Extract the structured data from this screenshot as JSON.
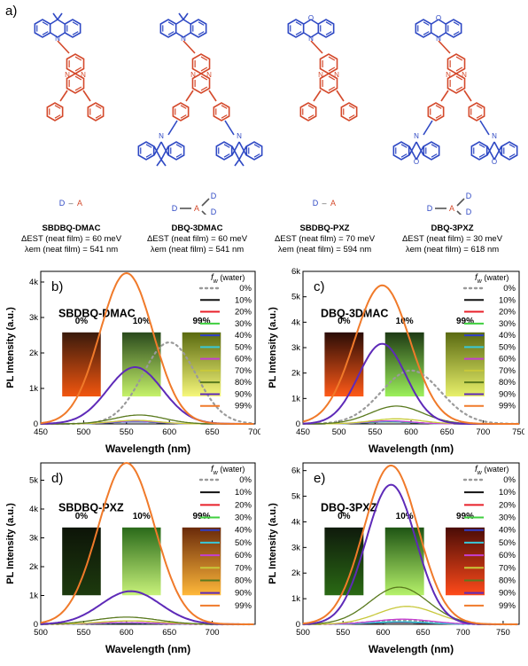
{
  "panel_a": {
    "label": "a)",
    "compounds": [
      {
        "name": "SBDBQ-DMAC",
        "dest": "ΔEST (neat film) = 60 meV",
        "lem": "λem (neat film) = 541 nm",
        "da": [
          "D",
          "A"
        ],
        "donor": "dmac",
        "double": false
      },
      {
        "name": "DBQ-3DMAC",
        "dest": "ΔEST (neat film) = 60 meV",
        "lem": "λem (neat film) = 541 nm",
        "da": [
          "D",
          "A",
          "D",
          "D"
        ],
        "donor": "dmac",
        "double": true
      },
      {
        "name": "SBDBQ-PXZ",
        "dest": "ΔEST (neat film) = 70 meV",
        "lem": "λem (neat film) = 594 nm",
        "da": [
          "D",
          "A"
        ],
        "donor": "pxz",
        "double": false
      },
      {
        "name": "DBQ-3PXZ",
        "dest": "ΔEST (neat film) = 30 meV",
        "lem": "λem (neat film) = 618 nm",
        "da": [
          "D",
          "A",
          "D",
          "D"
        ],
        "donor": "pxz",
        "double": true
      }
    ],
    "colors": {
      "donor": "#2f49c4",
      "acceptor": "#d4492b"
    }
  },
  "legend": {
    "title": "f",
    "title_sub": "w",
    "title_suffix": " (water)",
    "entries": [
      "0%",
      "10%",
      "20%",
      "30%",
      "40%",
      "50%",
      "60%",
      "70%",
      "80%",
      "90%",
      "99%"
    ],
    "colors": [
      "#9a9a9a",
      "#111111",
      "#e8202a",
      "#3fcf3f",
      "#2f3fc8",
      "#38c8d8",
      "#c43fd0",
      "#c8c83a",
      "#5a7a1e",
      "#5e2ab8",
      "#f07a2a"
    ]
  },
  "photo_labels": [
    "0%",
    "10%",
    "99%"
  ],
  "chart_data": [
    {
      "type": "line",
      "label": "b)",
      "name": "SBDBQ-DMAC",
      "xlabel": "Wavelength (nm)",
      "ylabel": "PL Intensity (a.u.)",
      "xlim": [
        450,
        700
      ],
      "ylim": [
        0,
        4300
      ],
      "xticks": [
        450,
        500,
        550,
        600,
        650,
        700
      ],
      "xtick_labels": [
        "450",
        "500",
        "550",
        "600",
        "650",
        "700"
      ],
      "yticks": [
        0,
        1000,
        2000,
        3000,
        4000
      ],
      "ytick_labels": [
        "0",
        "1k",
        "2k",
        "3k",
        "4k"
      ],
      "series": [
        {
          "name": "0%",
          "peak": 2300,
          "center": 600,
          "width": 34
        },
        {
          "name": "10%",
          "peak": 60,
          "center": 560,
          "width": 30
        },
        {
          "name": "20%",
          "peak": 60,
          "center": 560,
          "width": 30
        },
        {
          "name": "30%",
          "peak": 60,
          "center": 560,
          "width": 30
        },
        {
          "name": "40%",
          "peak": 60,
          "center": 560,
          "width": 30
        },
        {
          "name": "50%",
          "peak": 70,
          "center": 560,
          "width": 30
        },
        {
          "name": "60%",
          "peak": 80,
          "center": 560,
          "width": 30
        },
        {
          "name": "70%",
          "peak": 100,
          "center": 560,
          "width": 30
        },
        {
          "name": "80%",
          "peak": 250,
          "center": 565,
          "width": 32
        },
        {
          "name": "90%",
          "peak": 1600,
          "center": 560,
          "width": 35
        },
        {
          "name": "99%",
          "peak": 4250,
          "center": 550,
          "width": 34
        }
      ]
    },
    {
      "type": "line",
      "label": "c)",
      "name": "DBQ-3DMAC",
      "xlabel": "Wavelength (nm)",
      "ylabel": "PL Intensity (a.u.)",
      "xlim": [
        450,
        750
      ],
      "ylim": [
        0,
        6000
      ],
      "xticks": [
        450,
        500,
        550,
        600,
        650,
        700,
        750
      ],
      "xtick_labels": [
        "450",
        "500",
        "550",
        "600",
        "650",
        "700",
        "750"
      ],
      "yticks": [
        0,
        1000,
        2000,
        3000,
        4000,
        5000,
        6000
      ],
      "ytick_labels": [
        "0",
        "1k",
        "2k",
        "3k",
        "4k",
        "5k",
        "6k"
      ],
      "series": [
        {
          "name": "0%",
          "peak": 2100,
          "center": 600,
          "width": 45
        },
        {
          "name": "10%",
          "peak": 80,
          "center": 570,
          "width": 35
        },
        {
          "name": "20%",
          "peak": 80,
          "center": 570,
          "width": 35
        },
        {
          "name": "30%",
          "peak": 80,
          "center": 570,
          "width": 35
        },
        {
          "name": "40%",
          "peak": 90,
          "center": 570,
          "width": 35
        },
        {
          "name": "50%",
          "peak": 100,
          "center": 570,
          "width": 35
        },
        {
          "name": "60%",
          "peak": 120,
          "center": 570,
          "width": 35
        },
        {
          "name": "70%",
          "peak": 200,
          "center": 580,
          "width": 38
        },
        {
          "name": "80%",
          "peak": 700,
          "center": 580,
          "width": 40
        },
        {
          "name": "90%",
          "peak": 3150,
          "center": 560,
          "width": 36
        },
        {
          "name": "99%",
          "peak": 5450,
          "center": 560,
          "width": 42
        }
      ]
    },
    {
      "type": "line",
      "label": "d)",
      "name": "SBDBQ-PXZ",
      "xlabel": "Wavelength (nm)",
      "ylabel": "PL Intensity (a.u.)",
      "xlim": [
        500,
        750
      ],
      "ylim": [
        0,
        5600
      ],
      "xticks": [
        500,
        550,
        600,
        650,
        700
      ],
      "xtick_labels": [
        "500",
        "550",
        "600",
        "650",
        "700"
      ],
      "yticks": [
        0,
        1000,
        2000,
        3000,
        4000,
        5000
      ],
      "ytick_labels": [
        "0",
        "1k",
        "2k",
        "3k",
        "4k",
        "5k"
      ],
      "series": [
        {
          "name": "0%",
          "peak": 50,
          "center": 600,
          "width": 40
        },
        {
          "name": "10%",
          "peak": 40,
          "center": 600,
          "width": 40
        },
        {
          "name": "20%",
          "peak": 40,
          "center": 600,
          "width": 40
        },
        {
          "name": "30%",
          "peak": 40,
          "center": 600,
          "width": 40
        },
        {
          "name": "40%",
          "peak": 45,
          "center": 600,
          "width": 40
        },
        {
          "name": "50%",
          "peak": 50,
          "center": 600,
          "width": 40
        },
        {
          "name": "60%",
          "peak": 60,
          "center": 600,
          "width": 40
        },
        {
          "name": "70%",
          "peak": 120,
          "center": 605,
          "width": 40
        },
        {
          "name": "80%",
          "peak": 250,
          "center": 600,
          "width": 40
        },
        {
          "name": "90%",
          "peak": 1150,
          "center": 605,
          "width": 38
        },
        {
          "name": "99%",
          "peak": 5600,
          "center": 600,
          "width": 36
        }
      ]
    },
    {
      "type": "line",
      "label": "e)",
      "name": "DBQ-3PXZ",
      "xlabel": "Wavelength (nm)",
      "ylabel": "PL Intensity (a.u.)",
      "xlim": [
        500,
        770
      ],
      "ylim": [
        0,
        6300
      ],
      "xticks": [
        500,
        550,
        600,
        650,
        700,
        750
      ],
      "xtick_labels": [
        "500",
        "550",
        "600",
        "650",
        "700",
        "750"
      ],
      "yticks": [
        0,
        1000,
        2000,
        3000,
        4000,
        5000,
        6000
      ],
      "ytick_labels": [
        "0",
        "1k",
        "2k",
        "3k",
        "4k",
        "5k",
        "6k"
      ],
      "series": [
        {
          "name": "0%",
          "peak": 150,
          "center": 620,
          "width": 40
        },
        {
          "name": "10%",
          "peak": 60,
          "center": 620,
          "width": 40
        },
        {
          "name": "20%",
          "peak": 60,
          "center": 620,
          "width": 40
        },
        {
          "name": "30%",
          "peak": 70,
          "center": 620,
          "width": 40
        },
        {
          "name": "40%",
          "peak": 80,
          "center": 620,
          "width": 40
        },
        {
          "name": "50%",
          "peak": 100,
          "center": 620,
          "width": 40
        },
        {
          "name": "60%",
          "peak": 200,
          "center": 625,
          "width": 40
        },
        {
          "name": "70%",
          "peak": 700,
          "center": 630,
          "width": 40
        },
        {
          "name": "80%",
          "peak": 1450,
          "center": 620,
          "width": 40
        },
        {
          "name": "90%",
          "peak": 5450,
          "center": 610,
          "width": 34
        },
        {
          "name": "99%",
          "peak": 6200,
          "center": 610,
          "width": 37
        }
      ]
    }
  ]
}
